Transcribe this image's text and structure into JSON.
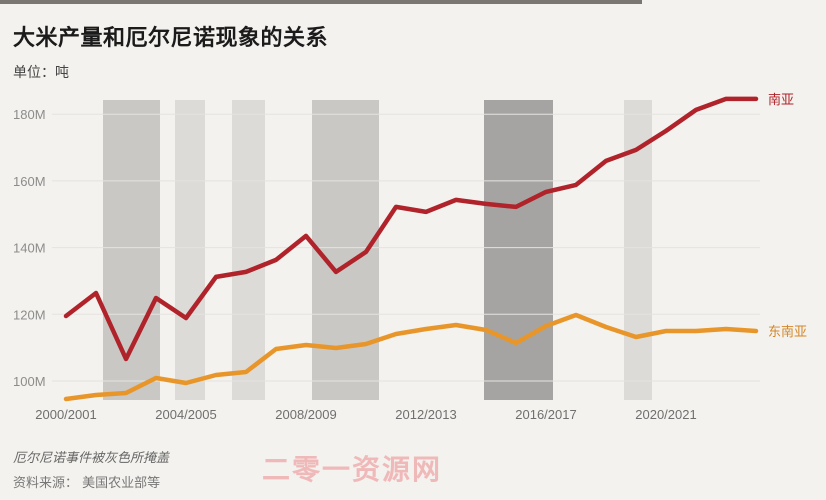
{
  "title": "大米产量和厄尔尼诺现象的关系",
  "unit": "单位：吨",
  "footnote": "厄尔尼诺事件被灰色所掩盖",
  "source": "资料来源： 美国农业部等",
  "watermark": "二零一资源网",
  "colors": {
    "south_asia": "#b0232a",
    "southeast_asia": "#e8962a",
    "band_light": "#dcdbd8",
    "band_medium": "#c9c8c5",
    "band_dark": "#a5a4a2",
    "background": "#f3f2ee"
  },
  "chart_data": {
    "type": "line",
    "title": "大米产量和厄尔尼诺现象的关系",
    "subtitle": "单位：吨",
    "xlabel": "",
    "ylabel": "",
    "ylim": [
      95,
      185
    ],
    "grid": true,
    "y_ticks": [
      "100M",
      "120M",
      "140M",
      "160M",
      "180M"
    ],
    "x_tick_labels": [
      "2000/2001",
      "2004/2005",
      "2008/2009",
      "2012/2013",
      "2016/2017",
      "2020/2021"
    ],
    "x": [
      "2000/2001",
      "2001/2002",
      "2002/2003",
      "2003/2004",
      "2004/2005",
      "2005/2006",
      "2006/2007",
      "2007/2008",
      "2008/2009",
      "2009/2010",
      "2010/2011",
      "2011/2012",
      "2012/2013",
      "2013/2014",
      "2014/2015",
      "2015/2016",
      "2016/2017",
      "2017/2018",
      "2018/2019",
      "2019/2020",
      "2020/2021",
      "2021/2022",
      "2022/2023",
      "2023/2024"
    ],
    "series": [
      {
        "name": "南亚",
        "unit": "M",
        "values": [
          119.5,
          126.4,
          106.6,
          124.9,
          118.9,
          131.2,
          132.7,
          136.3,
          143.5,
          132.7,
          138.7,
          152.2,
          150.7,
          154.3,
          153.1,
          152.2,
          156.7,
          158.8,
          166.0,
          169.3,
          175.0,
          181.3,
          184.6,
          184.6
        ]
      },
      {
        "name": "东南亚",
        "unit": "M",
        "values": [
          94.6,
          95.8,
          96.4,
          100.9,
          99.4,
          101.8,
          102.7,
          109.6,
          110.8,
          109.9,
          111.1,
          114.1,
          115.6,
          116.8,
          115.3,
          111.4,
          116.5,
          119.8,
          116.2,
          113.2,
          115.0,
          115.0,
          115.6,
          115.0
        ]
      }
    ],
    "legend": "inline labels at line ends (right)",
    "annotations": "灰色区域 = 厄尔尼诺事件",
    "el_nino_bands": [
      {
        "start": "2002/2003",
        "end": "2004/2005",
        "shade": "medium"
      },
      {
        "start": "2004/2005",
        "end": "2005/2006",
        "shade": "light"
      },
      {
        "start": "2006/2007",
        "end": "2007/2008",
        "shade": "light"
      },
      {
        "start": "2008/2009",
        "end": "2010/2011",
        "shade": "medium"
      },
      {
        "start": "2014/2015",
        "end": "2016/2017",
        "shade": "dark"
      },
      {
        "start": "2018/2019",
        "end": "2019/2020",
        "shade": "light"
      }
    ]
  }
}
